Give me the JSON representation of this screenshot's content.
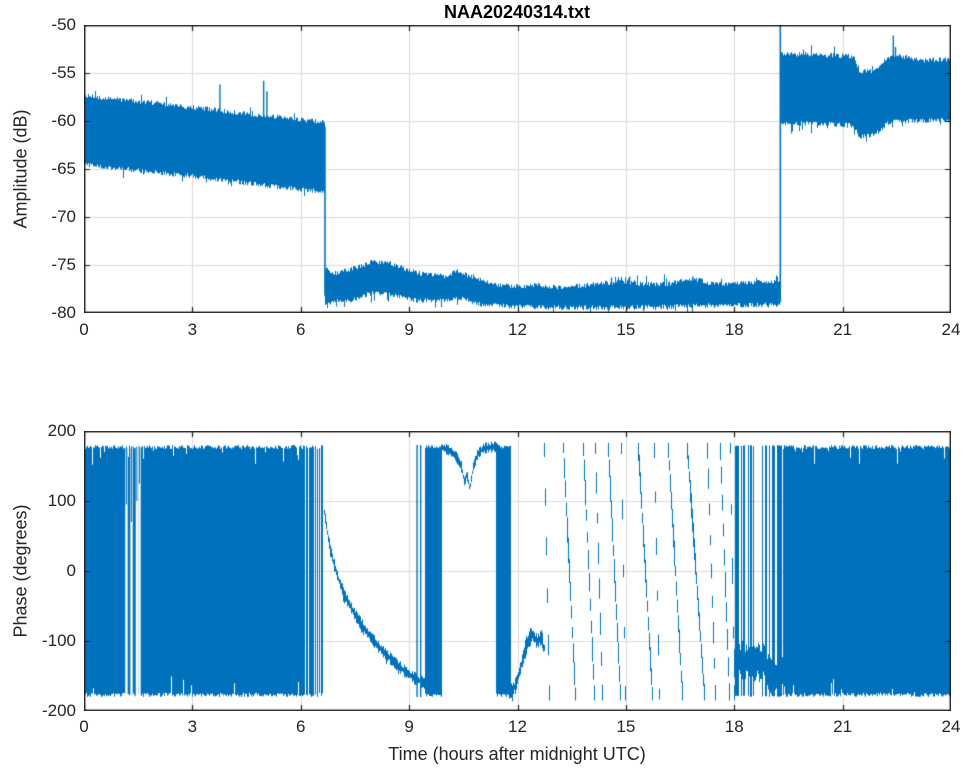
{
  "figure": {
    "title": "NAA20240314.txt",
    "colors": {
      "line": "#0072BD",
      "frame": "#1f1f1f",
      "grid": "#dcdcdc",
      "label": "#262626",
      "background": "#ffffff"
    }
  },
  "chart_data": [
    {
      "type": "line",
      "id": "amplitude",
      "title": "NAA20240314.txt",
      "ylabel": "Amplitude (dB)",
      "xlabel": "",
      "xlim": [
        0,
        24
      ],
      "ylim": [
        -80,
        -50
      ],
      "grid": true,
      "legend": "none",
      "xticks": [
        0,
        3,
        6,
        9,
        12,
        15,
        18,
        21,
        24
      ],
      "xtick_labels": [
        "0",
        "3",
        "6",
        "9",
        "12",
        "15",
        "18",
        "21",
        "24"
      ],
      "yticks": [
        -50,
        -55,
        -60,
        -65,
        -70,
        -75,
        -80
      ],
      "ytick_labels": [
        "-50",
        "-55",
        "-60",
        "-65",
        "-70",
        "-75",
        "-80"
      ],
      "line_color": "#0072BD",
      "description": "Noisy VLF amplitude envelope vs time; values are [t_hours, dB] keypoints of band upper (hi) and lower (lo) edges",
      "band_segments": [
        {
          "t0": 0.02,
          "t1": 6.67,
          "hi": [
            [
              0,
              -57.6
            ],
            [
              1.5,
              -58.2
            ],
            [
              3,
              -58.8
            ],
            [
              4.5,
              -59.5
            ],
            [
              6,
              -60.1
            ],
            [
              6.67,
              -60.4
            ]
          ],
          "lo": [
            [
              0,
              -64.3
            ],
            [
              1.5,
              -64.9
            ],
            [
              3,
              -65.5
            ],
            [
              4.5,
              -66.2
            ],
            [
              6,
              -66.9
            ],
            [
              6.67,
              -67.1
            ]
          ],
          "spikes": [
            [
              3.76,
              -56.2
            ],
            [
              4.97,
              -55.8
            ],
            [
              5.06,
              -56.9
            ]
          ]
        },
        {
          "t0": 6.67,
          "t1": 19.27,
          "hi": [
            [
              6.67,
              -75.7
            ],
            [
              7.0,
              -76.1
            ],
            [
              7.4,
              -75.7
            ],
            [
              8.0,
              -74.9
            ],
            [
              8.5,
              -75.1
            ],
            [
              9.0,
              -75.8
            ],
            [
              9.5,
              -76.3
            ],
            [
              10.0,
              -76.4
            ],
            [
              10.35,
              -75.9
            ],
            [
              10.8,
              -76.6
            ],
            [
              11.3,
              -77.2
            ],
            [
              12.0,
              -77.5
            ],
            [
              12.6,
              -77.3
            ],
            [
              13.2,
              -77.6
            ],
            [
              14.0,
              -77.3
            ],
            [
              14.8,
              -77.0
            ],
            [
              15.5,
              -77.2
            ],
            [
              16.2,
              -77.2
            ],
            [
              16.9,
              -76.7
            ],
            [
              17.4,
              -77.2
            ],
            [
              18.0,
              -77.2
            ],
            [
              18.6,
              -77.0
            ],
            [
              19.27,
              -76.9
            ]
          ],
          "lo": [
            [
              6.67,
              -78.7
            ],
            [
              7.4,
              -78.4
            ],
            [
              8.0,
              -77.6
            ],
            [
              8.6,
              -77.9
            ],
            [
              9.3,
              -78.5
            ],
            [
              10.0,
              -78.4
            ],
            [
              10.35,
              -78.1
            ],
            [
              11.0,
              -78.9
            ],
            [
              12.0,
              -79.1
            ],
            [
              13.0,
              -79.2
            ],
            [
              15.0,
              -79.2
            ],
            [
              17.0,
              -79.0
            ],
            [
              19.27,
              -78.9
            ]
          ],
          "spikes": [
            [
              14.6,
              -76.3
            ],
            [
              15.1,
              -76.2
            ],
            [
              16.85,
              -76.2
            ]
          ]
        },
        {
          "t0": 19.28,
          "t1": 23.98,
          "hi": [
            [
              19.28,
              -53.3
            ],
            [
              20.0,
              -53.3
            ],
            [
              21.3,
              -53.5
            ],
            [
              21.45,
              -55.0
            ],
            [
              21.8,
              -55.1
            ],
            [
              22.05,
              -54.6
            ],
            [
              22.2,
              -53.8
            ],
            [
              22.5,
              -53.4
            ],
            [
              23.2,
              -53.9
            ],
            [
              24,
              -53.8
            ]
          ],
          "lo": [
            [
              19.28,
              -60.0
            ],
            [
              20.0,
              -60.0
            ],
            [
              21.3,
              -60.2
            ],
            [
              21.45,
              -61.4
            ],
            [
              21.8,
              -61.2
            ],
            [
              22.05,
              -60.8
            ],
            [
              22.2,
              -60.1
            ],
            [
              22.5,
              -59.8
            ],
            [
              23.2,
              -59.7
            ],
            [
              24,
              -59.6
            ]
          ],
          "spikes": [
            [
              22.4,
              -51.1
            ],
            [
              22.46,
              -52.3
            ]
          ]
        }
      ],
      "jumps": [
        {
          "t": 6.67,
          "from": -60.6,
          "to": -78.2
        },
        {
          "t": 19.275,
          "from": -78.9,
          "to": -50.0
        }
      ]
    },
    {
      "type": "line",
      "id": "phase",
      "title": "",
      "ylabel": "Phase (degrees)",
      "xlabel": "Time (hours after midnight UTC)",
      "xlim": [
        0,
        24
      ],
      "ylim": [
        -200,
        200
      ],
      "grid": true,
      "legend": "none",
      "xticks": [
        0,
        3,
        6,
        9,
        12,
        15,
        18,
        21,
        24
      ],
      "xtick_labels": [
        "0",
        "3",
        "6",
        "9",
        "12",
        "15",
        "18",
        "21",
        "24"
      ],
      "yticks": [
        200,
        100,
        0,
        -100,
        -200
      ],
      "ytick_labels": [
        "200",
        "100",
        "0",
        "-100",
        "-200"
      ],
      "line_color": "#0072BD",
      "description": "VLF phase vs time; full-band noise when signal is weak, smooth curve and phase wraps during daytime propagation",
      "segments": [
        {
          "kind": "noise",
          "t0": 0.03,
          "t1": 6.64,
          "top": 180,
          "bot": -180,
          "gaps": [
            [
              1.17,
              95
            ],
            [
              1.31,
              70
            ],
            [
              1.46,
              100
            ],
            [
              1.53,
              125
            ]
          ],
          "stripe": {
            "t0": 5.8,
            "p": 0.45
          }
        },
        {
          "kind": "curve",
          "noise": 7,
          "points": [
            [
              6.66,
              84
            ],
            [
              6.76,
              48
            ],
            [
              6.9,
              14
            ],
            [
              7.05,
              -12
            ],
            [
              7.25,
              -38
            ],
            [
              7.5,
              -62
            ],
            [
              7.8,
              -85
            ],
            [
              8.15,
              -108
            ],
            [
              8.5,
              -126
            ],
            [
              8.85,
              -142
            ],
            [
              9.15,
              -153
            ],
            [
              9.45,
              -161
            ]
          ]
        },
        {
          "kind": "vline",
          "t": 9.22
        },
        {
          "kind": "vline",
          "t": 9.32
        },
        {
          "kind": "block",
          "t0": 9.45,
          "t1": 9.88
        },
        {
          "kind": "curve",
          "noise": 6,
          "points": [
            [
              9.9,
              177
            ],
            [
              10.15,
              171
            ],
            [
              10.3,
              164
            ],
            [
              10.45,
              149
            ],
            [
              10.54,
              126
            ],
            [
              10.6,
              139
            ],
            [
              10.68,
              117
            ],
            [
              10.78,
              149
            ],
            [
              10.9,
              167
            ],
            [
              11.05,
              175
            ],
            [
              11.41,
              178
            ]
          ]
        },
        {
          "kind": "block",
          "t0": 11.41,
          "t1": 11.79
        },
        {
          "kind": "curve",
          "noise": 10,
          "points": [
            [
              11.79,
              -173
            ],
            [
              11.95,
              -164
            ],
            [
              12.1,
              -136
            ],
            [
              12.25,
              -106
            ],
            [
              12.4,
              -90
            ],
            [
              12.55,
              -101
            ],
            [
              12.7,
              -93
            ],
            [
              12.72,
              -110
            ]
          ]
        },
        {
          "kind": "wraps",
          "list": [
            [
              12.74,
              12.87
            ],
            [
              13.28,
              13.58
            ],
            [
              13.84,
              14.1
            ],
            [
              14.17,
              14.33
            ],
            [
              14.53,
              14.83
            ],
            [
              14.87,
              14.97
            ],
            [
              15.36,
              15.71
            ],
            [
              15.78,
              15.9
            ],
            [
              16.19,
              16.54
            ],
            [
              16.71,
              17.15
            ],
            [
              17.27,
              17.46
            ],
            [
              17.63,
              17.84
            ],
            [
              17.9,
              17.99
            ]
          ]
        },
        {
          "kind": "mixed",
          "t0": 18.02,
          "t1": 19.33,
          "center": -138,
          "noise": 30,
          "vline_p": 0.42
        },
        {
          "kind": "noise",
          "t0": 19.35,
          "t1": 23.98,
          "top": 180,
          "bot": -180,
          "gaps": [],
          "stripe": null
        }
      ]
    }
  ]
}
